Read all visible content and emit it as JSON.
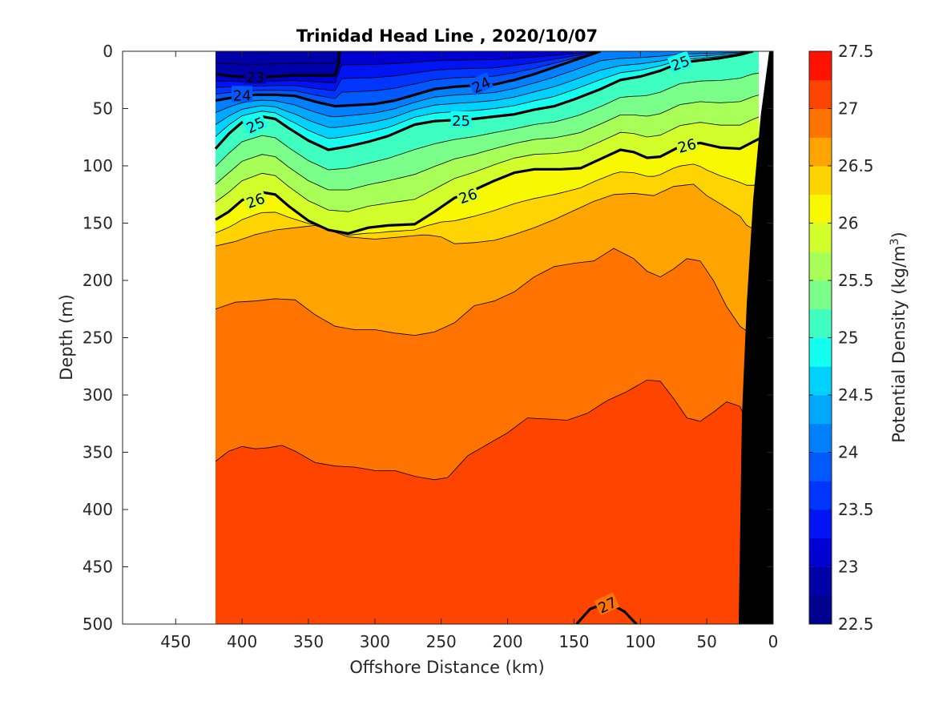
{
  "chart_data": {
    "type": "contour",
    "title": "Trinidad Head Line , 2020/10/07",
    "xlabel": "Offshore Distance (km)",
    "ylabel": "Depth (m)",
    "xlim": [
      490,
      0
    ],
    "ylim": [
      0,
      500
    ],
    "x_reversed": true,
    "y_reversed": true,
    "x_ticks": [
      450,
      400,
      350,
      300,
      250,
      200,
      150,
      100,
      50,
      0
    ],
    "y_ticks": [
      0,
      50,
      100,
      150,
      200,
      250,
      300,
      350,
      400,
      450,
      500
    ],
    "data_extent_x": [
      420,
      0
    ],
    "colorbar": {
      "label": "Potential Density (kg/m",
      "label_sup": "3",
      "label_end": ")",
      "min": 22.5,
      "max": 27.5,
      "step": 0.25,
      "tick_labels": [
        "22.5",
        "23",
        "23.5",
        "24",
        "24.5",
        "25",
        "25.5",
        "26",
        "26.5",
        "27",
        "27.5"
      ]
    },
    "bathymetry_color": "#000000",
    "contour_levels_labeled": [
      23,
      24,
      25,
      26,
      27
    ],
    "contours": [
      {
        "level": 26.0,
        "points": [
          [
            420,
            147
          ],
          [
            410,
            140
          ],
          [
            400,
            130
          ],
          [
            385,
            123
          ],
          [
            375,
            125
          ],
          [
            365,
            135
          ],
          [
            350,
            148
          ],
          [
            335,
            156
          ],
          [
            320,
            159
          ],
          [
            305,
            154
          ],
          [
            290,
            152
          ],
          [
            270,
            151
          ],
          [
            255,
            140
          ],
          [
            240,
            128
          ],
          [
            225,
            121
          ],
          [
            210,
            113
          ],
          [
            195,
            106
          ],
          [
            180,
            103
          ],
          [
            160,
            103
          ],
          [
            145,
            102
          ],
          [
            130,
            94
          ],
          [
            115,
            86
          ],
          [
            105,
            88
          ],
          [
            95,
            93
          ],
          [
            85,
            92
          ],
          [
            70,
            83
          ],
          [
            55,
            80
          ],
          [
            40,
            84
          ],
          [
            25,
            85
          ],
          [
            10,
            76
          ]
        ]
      },
      {
        "level": 25.0,
        "points": [
          [
            420,
            85
          ],
          [
            410,
            72
          ],
          [
            400,
            62
          ],
          [
            385,
            57
          ],
          [
            375,
            59
          ],
          [
            365,
            67
          ],
          [
            350,
            78
          ],
          [
            335,
            86
          ],
          [
            320,
            83
          ],
          [
            305,
            79
          ],
          [
            290,
            74
          ],
          [
            270,
            64
          ],
          [
            255,
            61
          ],
          [
            240,
            60
          ],
          [
            225,
            59
          ],
          [
            210,
            57
          ],
          [
            195,
            55
          ],
          [
            180,
            51
          ],
          [
            165,
            48
          ],
          [
            150,
            42
          ],
          [
            130,
            33
          ],
          [
            115,
            25
          ],
          [
            100,
            22
          ],
          [
            85,
            17
          ],
          [
            70,
            10
          ],
          [
            55,
            8
          ],
          [
            40,
            6
          ],
          [
            25,
            3
          ],
          [
            15,
            0
          ]
        ]
      },
      {
        "level": 24.0,
        "points": [
          [
            420,
            43
          ],
          [
            405,
            40
          ],
          [
            390,
            38
          ],
          [
            375,
            38
          ],
          [
            360,
            39
          ],
          [
            345,
            44
          ],
          [
            330,
            48
          ],
          [
            315,
            47
          ],
          [
            300,
            46
          ],
          [
            285,
            43
          ],
          [
            270,
            38
          ],
          [
            255,
            33
          ],
          [
            240,
            31
          ],
          [
            225,
            30
          ],
          [
            210,
            29
          ],
          [
            195,
            25
          ],
          [
            180,
            20
          ],
          [
            165,
            14
          ],
          [
            150,
            8
          ],
          [
            140,
            4
          ],
          [
            130,
            0
          ]
        ]
      },
      {
        "level": 23.0,
        "points": [
          [
            420,
            20
          ],
          [
            405,
            22
          ],
          [
            390,
            23
          ],
          [
            375,
            22
          ],
          [
            360,
            21
          ],
          [
            345,
            21
          ],
          [
            330,
            21
          ],
          [
            327,
            10
          ],
          [
            327,
            0
          ]
        ]
      },
      {
        "level": 27.0,
        "points": [
          [
            148,
            500
          ],
          [
            138,
            487
          ],
          [
            125,
            481
          ],
          [
            112,
            489
          ],
          [
            103,
            500
          ]
        ]
      }
    ],
    "thin_contours": [
      {
        "level": 26.5,
        "points": [
          [
            420,
            170
          ],
          [
            405,
            166
          ],
          [
            390,
            160
          ],
          [
            375,
            156
          ],
          [
            360,
            154
          ],
          [
            345,
            152
          ],
          [
            335,
            156
          ],
          [
            320,
            162
          ],
          [
            300,
            164
          ],
          [
            280,
            162
          ],
          [
            262,
            160
          ],
          [
            250,
            162
          ],
          [
            240,
            168
          ],
          [
            225,
            167
          ],
          [
            210,
            165
          ],
          [
            195,
            160
          ],
          [
            180,
            154
          ],
          [
            165,
            147
          ],
          [
            150,
            139
          ],
          [
            135,
            131
          ],
          [
            120,
            125
          ],
          [
            105,
            124
          ],
          [
            90,
            126
          ],
          [
            75,
            118
          ],
          [
            60,
            116
          ],
          [
            50,
            126
          ],
          [
            40,
            133
          ],
          [
            25,
            144
          ],
          [
            18,
            155
          ]
        ]
      },
      {
        "level": 26.75,
        "points": [
          [
            420,
            225
          ],
          [
            405,
            219
          ],
          [
            390,
            218
          ],
          [
            375,
            216
          ],
          [
            360,
            217
          ],
          [
            345,
            230
          ],
          [
            330,
            240
          ],
          [
            315,
            243
          ],
          [
            300,
            243
          ],
          [
            285,
            246
          ],
          [
            270,
            248
          ],
          [
            255,
            245
          ],
          [
            240,
            237
          ],
          [
            225,
            222
          ],
          [
            210,
            218
          ],
          [
            195,
            210
          ],
          [
            180,
            197
          ],
          [
            165,
            188
          ],
          [
            150,
            185
          ],
          [
            135,
            183
          ],
          [
            120,
            172
          ],
          [
            105,
            181
          ],
          [
            95,
            192
          ],
          [
            85,
            197
          ],
          [
            75,
            190
          ],
          [
            65,
            181
          ],
          [
            55,
            183
          ],
          [
            45,
            200
          ],
          [
            35,
            223
          ],
          [
            25,
            240
          ],
          [
            18,
            246
          ]
        ]
      },
      {
        "level": 27.0,
        "points": [
          [
            420,
            358
          ],
          [
            410,
            349
          ],
          [
            400,
            345
          ],
          [
            390,
            347
          ],
          [
            380,
            346
          ],
          [
            370,
            344
          ],
          [
            360,
            349
          ],
          [
            345,
            359
          ],
          [
            330,
            362
          ],
          [
            315,
            363
          ],
          [
            300,
            366
          ],
          [
            285,
            366
          ],
          [
            270,
            371
          ],
          [
            255,
            374
          ],
          [
            245,
            372
          ],
          [
            230,
            353
          ],
          [
            215,
            343
          ],
          [
            200,
            333
          ],
          [
            185,
            320
          ],
          [
            170,
            321
          ],
          [
            155,
            322
          ],
          [
            140,
            316
          ],
          [
            125,
            305
          ],
          [
            110,
            297
          ],
          [
            95,
            287
          ],
          [
            85,
            288
          ],
          [
            75,
            303
          ],
          [
            65,
            320
          ],
          [
            55,
            323
          ],
          [
            45,
            315
          ],
          [
            35,
            306
          ],
          [
            25,
            310
          ],
          [
            15,
            337
          ],
          [
            5,
            365
          ]
        ]
      }
    ],
    "color_stops": [
      {
        "value": 22.5,
        "color": "#00008f"
      },
      {
        "value": 22.75,
        "color": "#0000a8"
      },
      {
        "value": 23.0,
        "color": "#0000d0"
      },
      {
        "value": 23.25,
        "color": "#0013f2"
      },
      {
        "value": 23.5,
        "color": "#0035ff"
      },
      {
        "value": 23.75,
        "color": "#0059ff"
      },
      {
        "value": 24.0,
        "color": "#0080ff"
      },
      {
        "value": 24.25,
        "color": "#00a8ff"
      },
      {
        "value": 24.5,
        "color": "#00d2ff"
      },
      {
        "value": 24.75,
        "color": "#14fff0"
      },
      {
        "value": 25.0,
        "color": "#3fffc0"
      },
      {
        "value": 25.25,
        "color": "#7aff8a"
      },
      {
        "value": 25.5,
        "color": "#a8ff58"
      },
      {
        "value": 25.75,
        "color": "#d2ff2c"
      },
      {
        "value": 26.0,
        "color": "#f8f800"
      },
      {
        "value": 26.25,
        "color": "#ffd400"
      },
      {
        "value": 26.5,
        "color": "#ffa400"
      },
      {
        "value": 26.75,
        "color": "#ff7400"
      },
      {
        "value": 27.0,
        "color": "#ff4400"
      },
      {
        "value": 27.25,
        "color": "#ff1200"
      },
      {
        "value": 27.5,
        "color": "#c40000"
      }
    ]
  }
}
